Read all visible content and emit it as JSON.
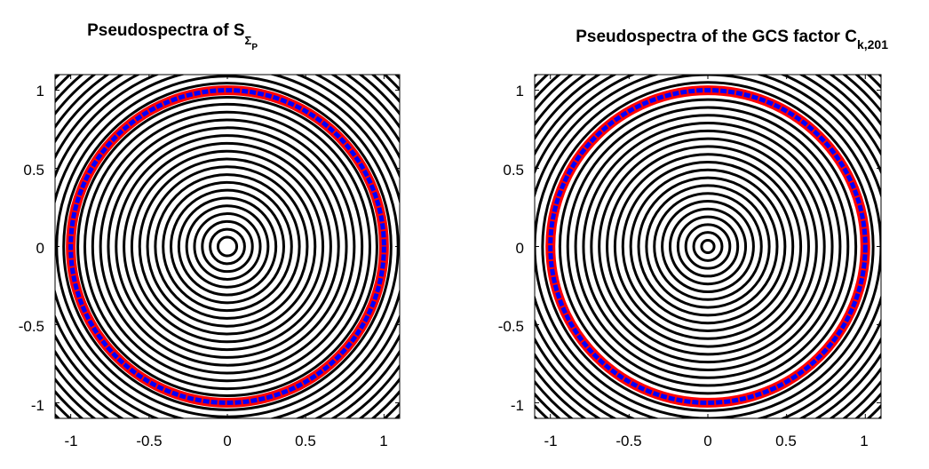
{
  "chart_data": [
    {
      "type": "contour",
      "title": "Pseudospectra of S",
      "title_subscript": "Σ",
      "title_subsubscript": "P",
      "xlim": [
        -1.1,
        1.1
      ],
      "ylim": [
        -1.1,
        1.1
      ],
      "x_ticks": [
        -1,
        -0.5,
        0,
        0.5,
        1
      ],
      "y_ticks": [
        -1,
        -0.5,
        0,
        0.5,
        1
      ],
      "x_tick_labels": [
        "-1",
        "-0.5",
        "0",
        "0.5",
        "1"
      ],
      "y_tick_labels": [
        "1",
        "0.5",
        "0",
        "-0.5",
        "-1"
      ],
      "contour_radii": [
        0.06,
        0.11,
        0.16,
        0.21,
        0.26,
        0.31,
        0.36,
        0.41,
        0.46,
        0.51,
        0.56,
        0.61,
        0.66,
        0.71,
        0.76,
        0.81,
        0.86,
        0.91,
        0.955,
        1.045,
        1.09,
        1.14,
        1.19,
        1.24,
        1.29,
        1.34,
        1.39,
        1.44,
        1.49,
        1.54
      ],
      "unit_circle_radius": 1.0,
      "contour_color": "#000000",
      "boundary_colors": [
        "#ff0000",
        "#0000ff"
      ],
      "grid": false
    },
    {
      "type": "contour",
      "title": "Pseudospectra of the GCS factor C",
      "title_subscript": "k,201",
      "title_subsubscript": "",
      "xlim": [
        -1.1,
        1.1
      ],
      "ylim": [
        -1.1,
        1.1
      ],
      "x_ticks": [
        -1,
        -0.5,
        0,
        0.5,
        1
      ],
      "y_ticks": [
        -1,
        -0.5,
        0,
        0.5,
        1
      ],
      "x_tick_labels": [
        "-1",
        "-0.5",
        "0",
        "0.5",
        "1"
      ],
      "y_tick_labels": [
        "1",
        "0.5",
        "0",
        "-0.5",
        "-1"
      ],
      "contour_radii": [
        0.04,
        0.09,
        0.14,
        0.19,
        0.24,
        0.29,
        0.34,
        0.39,
        0.44,
        0.49,
        0.54,
        0.59,
        0.64,
        0.69,
        0.74,
        0.79,
        0.84,
        0.89,
        0.94,
        1.05,
        1.1,
        1.15,
        1.2,
        1.25,
        1.3,
        1.35,
        1.4,
        1.45,
        1.5,
        1.55
      ],
      "unit_circle_radius": 1.0,
      "contour_color": "#000000",
      "boundary_colors": [
        "#ff0000",
        "#0000ff"
      ],
      "grid": false
    }
  ]
}
